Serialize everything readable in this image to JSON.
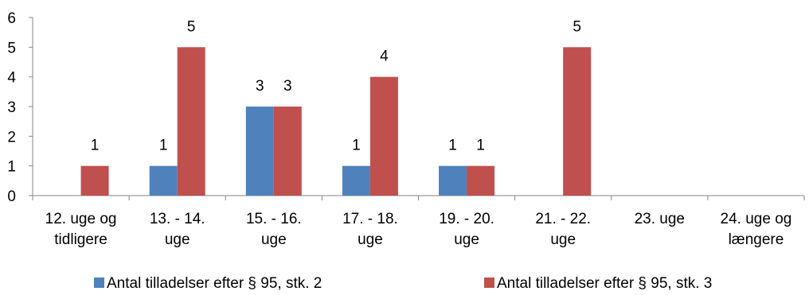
{
  "chart_data": {
    "type": "bar",
    "categories": [
      [
        "12. uge og",
        "tidligere"
      ],
      [
        "13. - 14.",
        "uge"
      ],
      [
        "15. - 16.",
        "uge"
      ],
      [
        "17. - 18.",
        "uge"
      ],
      [
        "19. - 20.",
        "uge"
      ],
      [
        "21. - 22.",
        "uge"
      ],
      [
        "23. uge"
      ],
      [
        "24. uge og",
        "længere"
      ]
    ],
    "series": [
      {
        "name": "Antal tilladelser efter § 95, stk. 2",
        "color": "#4F81BD",
        "values": [
          0,
          1,
          3,
          1,
          1,
          0,
          0,
          0
        ]
      },
      {
        "name": "Antal tilladelser efter § 95, stk. 3",
        "color": "#C0504D",
        "values": [
          1,
          5,
          3,
          4,
          1,
          5,
          0,
          0
        ]
      }
    ],
    "ylim": [
      0,
      6
    ],
    "yticks": [
      0,
      1,
      2,
      3,
      4,
      5,
      6
    ],
    "grid": false,
    "legend": "bottom",
    "data_labels": true
  }
}
